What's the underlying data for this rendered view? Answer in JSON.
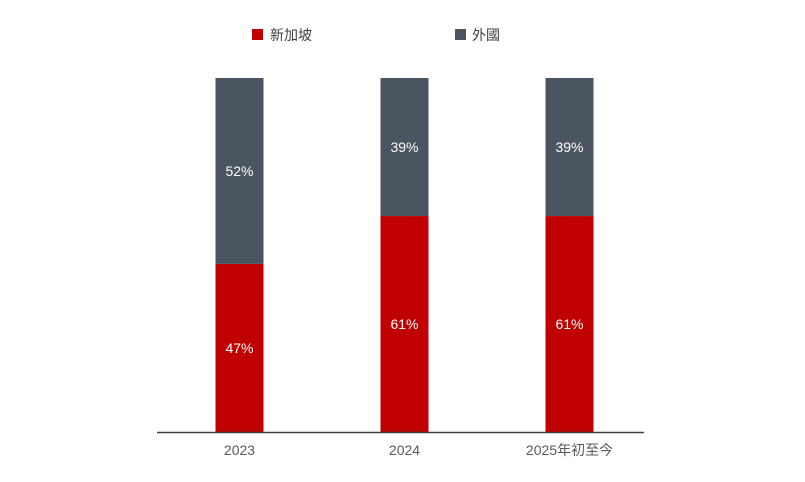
{
  "chart_data": {
    "type": "bar",
    "stacked": true,
    "normalized": true,
    "categories": [
      "2023",
      "2024",
      "2025年初至今"
    ],
    "series": [
      {
        "name": "新加坡",
        "color": "#c00000",
        "values": [
          47,
          61,
          61
        ],
        "data_labels": [
          "47%",
          "61%",
          "61%"
        ]
      },
      {
        "name": "外國",
        "color": "#4a5560",
        "values": [
          52,
          39,
          39
        ],
        "data_labels": [
          "52%",
          "39%",
          "39%"
        ]
      }
    ],
    "legend": "top",
    "grid": false,
    "axis_color": "#404040"
  }
}
